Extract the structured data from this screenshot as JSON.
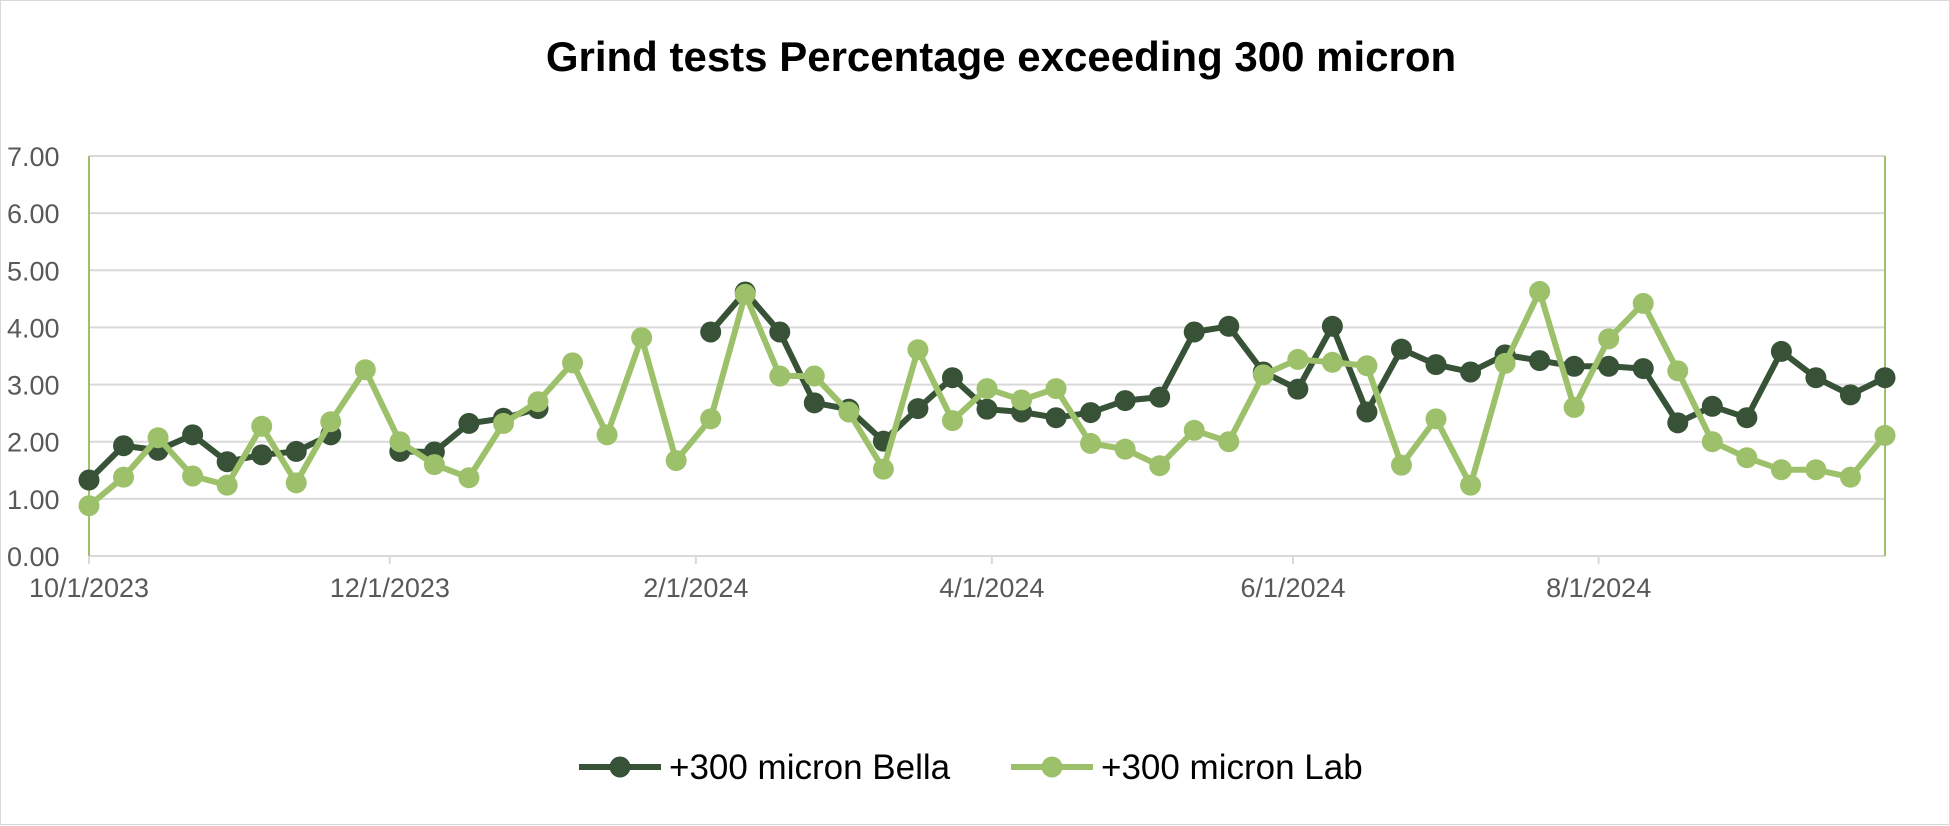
{
  "chart_data": {
    "type": "line",
    "title": "Grind tests Percentage exceeding 300 micron",
    "xlabel": "",
    "ylabel": "",
    "ylim": [
      0,
      7
    ],
    "y_ticks": [
      "0.00",
      "1.00",
      "2.00",
      "3.00",
      "4.00",
      "5.00",
      "6.00",
      "7.00"
    ],
    "x_tick_labels": [
      "10/1/2023",
      "12/1/2023",
      "2/1/2024",
      "4/1/2024",
      "6/1/2024",
      "8/1/2024"
    ],
    "x_tick_weeks": [
      0,
      8.71,
      17.57,
      26.14,
      34.86,
      43.71
    ],
    "x_range_weeks": [
      0,
      52
    ],
    "gridlines": true,
    "legend_position": "bottom",
    "series": [
      {
        "name": "+300 micron Bella",
        "color": "#375236",
        "values": [
          1.33,
          1.93,
          1.85,
          2.12,
          1.65,
          1.77,
          1.83,
          2.12,
          null,
          1.83,
          1.82,
          2.32,
          2.41,
          2.58,
          null,
          null,
          null,
          null,
          3.92,
          4.62,
          3.92,
          2.68,
          2.57,
          2.01,
          2.58,
          3.12,
          2.57,
          2.52,
          2.42,
          2.51,
          2.72,
          2.78,
          3.92,
          4.02,
          3.22,
          2.92,
          4.02,
          2.52,
          3.62,
          3.35,
          3.22,
          3.52,
          3.42,
          3.32,
          3.32,
          3.28,
          2.33,
          2.62,
          2.42,
          3.58,
          3.12,
          2.82,
          3.12
        ]
      },
      {
        "name": "+300 micron Lab",
        "color": "#9dc16b",
        "values": [
          0.88,
          1.38,
          2.07,
          1.4,
          1.24,
          2.27,
          1.28,
          2.35,
          3.26,
          2.0,
          1.6,
          1.37,
          2.32,
          2.7,
          3.38,
          2.12,
          3.82,
          1.67,
          2.4,
          4.58,
          3.15,
          3.15,
          2.52,
          1.52,
          3.61,
          2.37,
          2.93,
          2.73,
          2.93,
          1.97,
          1.87,
          1.58,
          2.2,
          2.0,
          3.17,
          3.44,
          3.39,
          3.33,
          1.59,
          2.4,
          1.24,
          3.37,
          4.63,
          2.6,
          3.8,
          4.42,
          3.24,
          2.0,
          1.72,
          1.51,
          1.51,
          1.38,
          2.11
        ]
      }
    ]
  }
}
